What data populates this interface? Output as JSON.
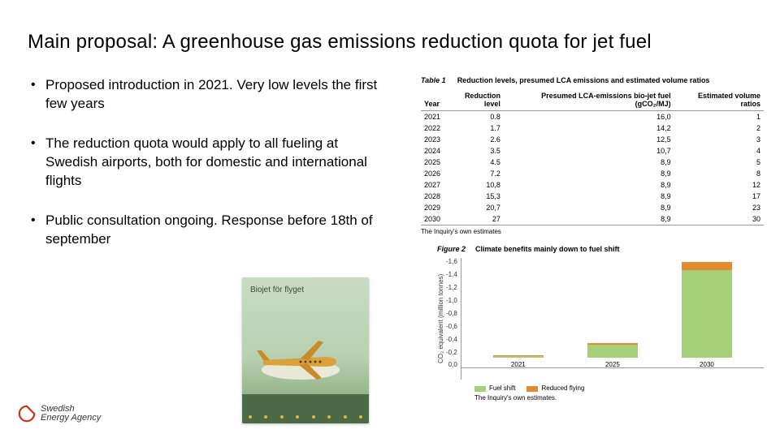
{
  "title": "Main proposal: A greenhouse gas emissions reduction quota for jet fuel",
  "bullets": [
    "Proposed introduction in 2021. Very low levels the first few years",
    "The reduction quota would apply to all fueling at Swedish airports, both for domestic and international flights",
    "Public consultation ongoing. Response before 18th of september"
  ],
  "table": {
    "label": "Table 1",
    "caption": "Reduction levels, presumed LCA emissions and estimated volume ratios",
    "columns": [
      "Year",
      "Reduction level",
      "Presumed LCA-emissions bio-jet fuel (gCO₂/MJ)",
      "Estimated volume ratios"
    ],
    "rows": [
      [
        "2021",
        "0.8",
        "16,0",
        "1"
      ],
      [
        "2022",
        "1.7",
        "14,2",
        "2"
      ],
      [
        "2023",
        "2.6",
        "12,5",
        "3"
      ],
      [
        "2024",
        "3.5",
        "10,7",
        "4"
      ],
      [
        "2025",
        "4.5",
        "8,9",
        "5"
      ],
      [
        "2026",
        "7.2",
        "8,9",
        "8"
      ],
      [
        "2027",
        "10,8",
        "8,9",
        "12"
      ],
      [
        "2028",
        "15,3",
        "8,9",
        "17"
      ],
      [
        "2029",
        "20,7",
        "8,9",
        "23"
      ],
      [
        "2030",
        "27",
        "8,9",
        "30"
      ]
    ],
    "footnote": "The Inquiry's own estimates"
  },
  "chart": {
    "type": "stacked-bar",
    "label": "Figure 2",
    "caption": "Climate benefits mainly down to fuel shift",
    "ylabel": "CO₂ equivalent (million tonnes)",
    "ylim": [
      0,
      1.6
    ],
    "yticks": [
      "-1,6",
      "-1,4",
      "-1,2",
      "-1,0",
      "-0,8",
      "-0,6",
      "-0,4",
      "-0,2",
      "0,0"
    ],
    "categories": [
      "2021",
      "2025",
      "2030"
    ],
    "series": [
      {
        "name": "Fuel shift",
        "color": "#a6cf7a",
        "values": [
          0.03,
          0.19,
          1.28
        ]
      },
      {
        "name": "Reduced flying",
        "color": "#e38b2f",
        "values": [
          0.01,
          0.03,
          0.12
        ]
      }
    ],
    "footnote": "The Inquiry's own estimates.",
    "background": "#ffffff",
    "axis_color": "#999999"
  },
  "book": {
    "title": "Biojet för flyget"
  },
  "logo": {
    "line1": "Swedish",
    "line2": "Energy Agency",
    "color": "#cc3314"
  }
}
